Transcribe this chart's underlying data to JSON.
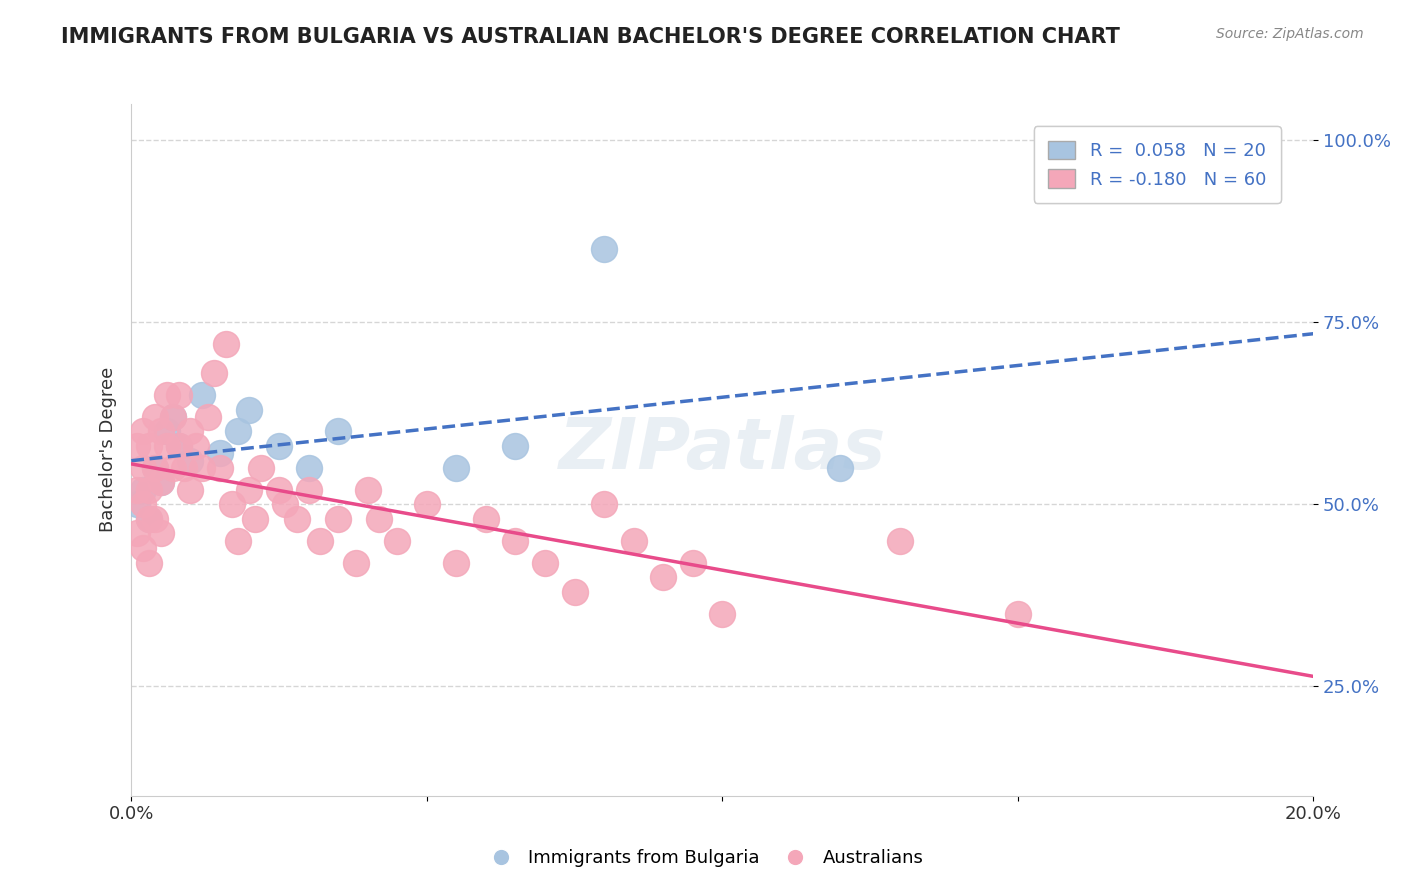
{
  "title": "IMMIGRANTS FROM BULGARIA VS AUSTRALIAN BACHELOR'S DEGREE CORRELATION CHART",
  "source": "Source: ZipAtlas.com",
  "ylabel": "Bachelor's Degree",
  "xmin": 0.0,
  "xmax": 0.2,
  "ymin": 0.1,
  "ymax": 1.05,
  "yticks": [
    0.25,
    0.5,
    0.75,
    1.0
  ],
  "ytick_labels": [
    "25.0%",
    "50.0%",
    "75.0%",
    "100.0%"
  ],
  "blue_color": "#a8c4e0",
  "pink_color": "#f4a7b9",
  "blue_line_color": "#4472c4",
  "pink_line_color": "#e84b8a",
  "R_blue": 0.058,
  "N_blue": 20,
  "R_pink": -0.18,
  "N_pink": 60,
  "legend_label_blue": "Immigrants from Bulgaria",
  "legend_label_pink": "Australians",
  "watermark": "ZIPatlas",
  "blue_scatter_x": [
    0.001,
    0.002,
    0.003,
    0.004,
    0.005,
    0.006,
    0.007,
    0.008,
    0.01,
    0.012,
    0.015,
    0.018,
    0.02,
    0.025,
    0.03,
    0.035,
    0.055,
    0.065,
    0.08,
    0.12
  ],
  "blue_scatter_y": [
    0.5,
    0.52,
    0.48,
    0.55,
    0.53,
    0.6,
    0.62,
    0.58,
    0.56,
    0.65,
    0.57,
    0.6,
    0.63,
    0.58,
    0.55,
    0.6,
    0.55,
    0.58,
    0.85,
    0.55
  ],
  "pink_scatter_x": [
    0.001,
    0.001,
    0.001,
    0.002,
    0.002,
    0.002,
    0.002,
    0.003,
    0.003,
    0.003,
    0.003,
    0.004,
    0.004,
    0.004,
    0.005,
    0.005,
    0.005,
    0.006,
    0.006,
    0.007,
    0.007,
    0.008,
    0.008,
    0.009,
    0.01,
    0.01,
    0.011,
    0.012,
    0.013,
    0.014,
    0.015,
    0.016,
    0.017,
    0.018,
    0.02,
    0.021,
    0.022,
    0.025,
    0.026,
    0.028,
    0.03,
    0.032,
    0.035,
    0.038,
    0.04,
    0.042,
    0.045,
    0.05,
    0.055,
    0.06,
    0.065,
    0.07,
    0.075,
    0.08,
    0.085,
    0.09,
    0.095,
    0.1,
    0.13,
    0.15
  ],
  "pink_scatter_y": [
    0.58,
    0.52,
    0.46,
    0.6,
    0.55,
    0.5,
    0.44,
    0.58,
    0.52,
    0.48,
    0.42,
    0.62,
    0.55,
    0.48,
    0.6,
    0.53,
    0.46,
    0.65,
    0.58,
    0.62,
    0.55,
    0.65,
    0.58,
    0.55,
    0.6,
    0.52,
    0.58,
    0.55,
    0.62,
    0.68,
    0.55,
    0.72,
    0.5,
    0.45,
    0.52,
    0.48,
    0.55,
    0.52,
    0.5,
    0.48,
    0.52,
    0.45,
    0.48,
    0.42,
    0.52,
    0.48,
    0.45,
    0.5,
    0.42,
    0.48,
    0.45,
    0.42,
    0.38,
    0.5,
    0.45,
    0.4,
    0.42,
    0.35,
    0.45,
    0.35
  ]
}
